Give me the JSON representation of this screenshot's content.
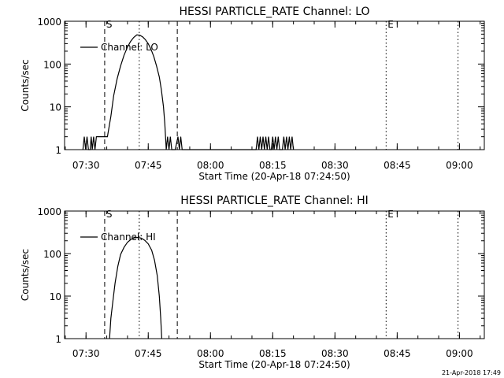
{
  "chart_data": [
    {
      "type": "line",
      "title": "HESSI PARTICLE_RATE Channel: LO",
      "xlabel": "Start Time (20-Apr-18 07:24:50)",
      "ylabel": "Counts/sec",
      "yscale": "log",
      "ylim": [
        1,
        1000
      ],
      "xlim": [
        "07:24:50",
        "09:06:00"
      ],
      "x_ticks": [
        "07:30",
        "07:45",
        "08:00",
        "08:15",
        "08:30",
        "08:45",
        "09:00"
      ],
      "y_ticks": [
        "1",
        "10",
        "100",
        "1000"
      ],
      "legend": {
        "label": "Channel: LO",
        "position": "top-left"
      },
      "markers": [
        {
          "label": "S",
          "time": "07:34:30",
          "style": "dashed"
        },
        {
          "label": "",
          "time": "07:42:50",
          "style": "dotted"
        },
        {
          "label": "",
          "time": "07:52:00",
          "style": "dashed"
        },
        {
          "label": "E",
          "time": "08:42:20",
          "style": "dotted"
        },
        {
          "label": "",
          "time": "08:59:40",
          "style": "dotted"
        }
      ],
      "series": [
        {
          "x": [
            "07:29:15",
            "07:29:35",
            "07:29:55",
            "07:30:15",
            "07:30:35",
            "07:31:00",
            "07:31:15",
            "07:31:30",
            "07:31:50",
            "07:32:10",
            "07:32:30",
            "07:33:00",
            "07:34:00",
            "07:34:40",
            "07:35:10",
            "07:36:00",
            "07:36:40",
            "07:37:30",
            "07:38:20",
            "07:39:10",
            "07:40:00",
            "07:40:45",
            "07:41:30",
            "07:42:15",
            "07:43:00",
            "07:43:40",
            "07:44:20",
            "07:45:00",
            "07:45:40",
            "07:46:20",
            "07:47:00",
            "07:47:40",
            "07:48:10",
            "07:48:40",
            "07:49:00",
            "07:49:20",
            "07:49:40",
            "07:50:00",
            "07:50:20",
            "07:50:40",
            "07:51:00",
            "07:51:30",
            "07:52:10",
            "07:52:30",
            "07:52:50",
            "07:53:10",
            "08:11:00",
            "08:11:20",
            "08:11:40",
            "08:12:00",
            "08:12:20",
            "08:12:40",
            "08:13:00",
            "08:13:20",
            "08:13:40",
            "08:14:00",
            "08:14:20",
            "08:14:40",
            "08:15:00",
            "08:15:20",
            "08:15:40",
            "08:16:00",
            "08:16:20",
            "08:16:40",
            "08:17:00",
            "08:17:20",
            "08:17:40",
            "08:18:00",
            "08:18:20",
            "08:18:40",
            "08:19:00",
            "08:19:20",
            "08:19:40",
            "08:20:00"
          ],
          "y": [
            1,
            2,
            1,
            2,
            1,
            1,
            2,
            1,
            2,
            1,
            2,
            2,
            2,
            2,
            2,
            6,
            18,
            45,
            90,
            160,
            250,
            340,
            420,
            480,
            470,
            430,
            370,
            300,
            220,
            150,
            90,
            50,
            25,
            10,
            4,
            1,
            2,
            1,
            2,
            1,
            1,
            1,
            2,
            1,
            2,
            1,
            1,
            2,
            1,
            2,
            1,
            2,
            1,
            2,
            1,
            2,
            1,
            1,
            2,
            1,
            2,
            1,
            2,
            1,
            1,
            1,
            2,
            1,
            2,
            1,
            2,
            1,
            2,
            1
          ]
        }
      ]
    },
    {
      "type": "line",
      "title": "HESSI PARTICLE_RATE Channel: HI",
      "xlabel": "Start Time (20-Apr-18 07:24:50)",
      "ylabel": "Counts/sec",
      "yscale": "log",
      "ylim": [
        1,
        1000
      ],
      "xlim": [
        "07:24:50",
        "09:06:00"
      ],
      "x_ticks": [
        "07:30",
        "07:45",
        "08:00",
        "08:15",
        "08:30",
        "08:45",
        "09:00"
      ],
      "y_ticks": [
        "1",
        "10",
        "100",
        "1000"
      ],
      "legend": {
        "label": "Channel: HI",
        "position": "top-left"
      },
      "markers": [
        {
          "label": "S",
          "time": "07:34:30",
          "style": "dashed"
        },
        {
          "label": "",
          "time": "07:42:50",
          "style": "dotted"
        },
        {
          "label": "",
          "time": "07:52:00",
          "style": "dashed"
        },
        {
          "label": "E",
          "time": "08:42:20",
          "style": "dotted"
        },
        {
          "label": "",
          "time": "08:59:40",
          "style": "dotted"
        }
      ],
      "series": [
        {
          "x": [
            "07:35:40",
            "07:36:00",
            "07:36:30",
            "07:37:00",
            "07:37:40",
            "07:38:20",
            "07:39:10",
            "07:40:00",
            "07:40:50",
            "07:41:40",
            "07:42:30",
            "07:43:20",
            "07:44:10",
            "07:45:00",
            "07:45:50",
            "07:46:30",
            "07:47:10",
            "07:47:40",
            "07:48:00",
            "07:48:15"
          ],
          "y": [
            1,
            3,
            8,
            20,
            50,
            95,
            140,
            185,
            215,
            235,
            240,
            230,
            205,
            170,
            120,
            70,
            30,
            10,
            3,
            1
          ]
        }
      ]
    }
  ],
  "footer": {
    "timestamp": "21-Apr-2018 17:49"
  }
}
